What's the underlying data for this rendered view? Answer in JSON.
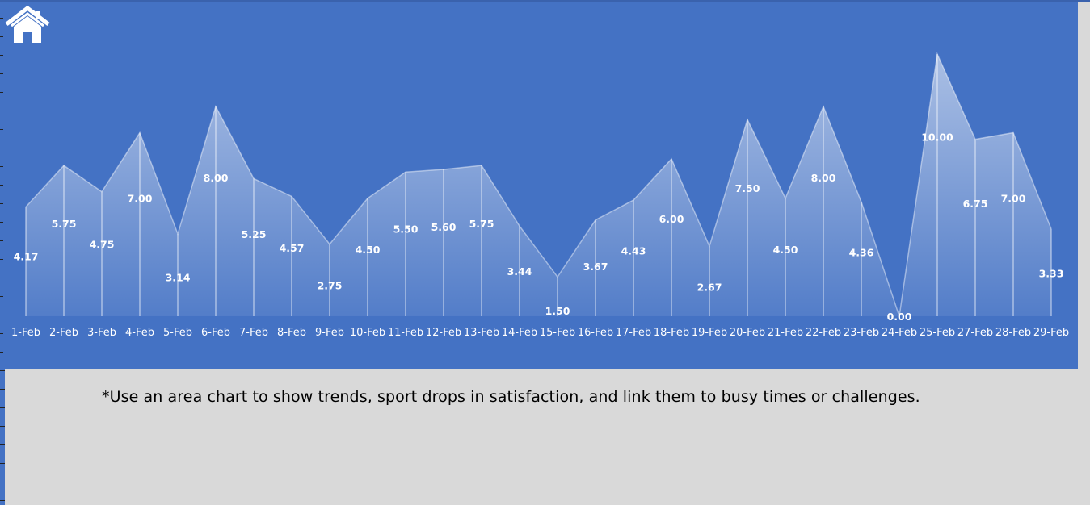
{
  "home": {
    "icon": "home-icon"
  },
  "note": {
    "text": "*Use an area chart to show trends, sport drops in satisfaction, and link them to busy times or challenges."
  },
  "colors": {
    "panel": "#4472c4",
    "background": "#d9d9d9",
    "label": "#ffffff"
  },
  "chart_data": {
    "type": "area",
    "categories": [
      "1-Feb",
      "2-Feb",
      "3-Feb",
      "4-Feb",
      "5-Feb",
      "6-Feb",
      "7-Feb",
      "8-Feb",
      "9-Feb",
      "10-Feb",
      "11-Feb",
      "12-Feb",
      "13-Feb",
      "14-Feb",
      "15-Feb",
      "16-Feb",
      "17-Feb",
      "18-Feb",
      "19-Feb",
      "20-Feb",
      "21-Feb",
      "22-Feb",
      "23-Feb",
      "24-Feb",
      "25-Feb",
      "27-Feb",
      "28-Feb",
      "29-Feb"
    ],
    "values": [
      4.17,
      5.75,
      4.75,
      7.0,
      3.14,
      8.0,
      5.25,
      4.57,
      2.75,
      4.5,
      5.5,
      5.6,
      5.75,
      3.44,
      1.5,
      3.67,
      4.43,
      6.0,
      2.67,
      7.5,
      4.5,
      8.0,
      4.36,
      0.0,
      10.0,
      6.75,
      7.0,
      3.33
    ],
    "labels": [
      "4.17",
      "5.75",
      "4.75",
      "7.00",
      "3.14",
      "8.00",
      "5.25",
      "4.57",
      "2.75",
      "4.50",
      "5.50",
      "5.60",
      "5.75",
      "3.44",
      "1.50",
      "3.67",
      "4.43",
      "6.00",
      "2.67",
      "7.50",
      "4.50",
      "8.00",
      "4.36",
      "0.00",
      "10.00",
      "6.75",
      "7.00",
      "3.33"
    ],
    "title": "",
    "xlabel": "",
    "ylabel": "",
    "ylim": [
      0,
      10
    ],
    "grid": false,
    "legend": "none"
  }
}
